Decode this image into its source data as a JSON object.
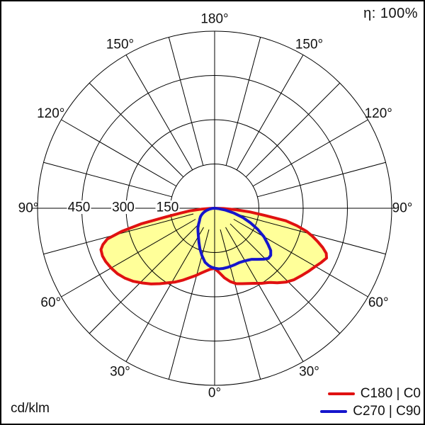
{
  "header": {
    "efficiency_label": "η: 100%"
  },
  "footer": {
    "unit_label": "cd/klm"
  },
  "legend": {
    "items": [
      {
        "label": "C180 | C0",
        "color": "#e01111"
      },
      {
        "label": "C270 | C90",
        "color": "#1515cc"
      }
    ]
  },
  "chart_data": {
    "type": "line",
    "polar": true,
    "units": "cd/klm",
    "efficiency": "100%",
    "radial_axis": {
      "max": 600,
      "rings": [
        150,
        300,
        450,
        600
      ]
    },
    "radial_tick_labels": [
      {
        "value": 450,
        "label": "450"
      },
      {
        "value": 300,
        "label": "300"
      },
      {
        "value": 150,
        "label": "150"
      }
    ],
    "angle_tick_labels": [
      {
        "dir": 180,
        "label": "180°"
      },
      {
        "dir": -150,
        "label": "150°"
      },
      {
        "dir": 150,
        "label": "150°"
      },
      {
        "dir": -120,
        "label": "120°"
      },
      {
        "dir": 120,
        "label": "120°"
      },
      {
        "dir": -90,
        "label": "90°"
      },
      {
        "dir": 90,
        "label": "90°"
      },
      {
        "dir": -60,
        "label": "60°"
      },
      {
        "dir": 60,
        "label": "60°"
      },
      {
        "dir": -30,
        "label": "30°"
      },
      {
        "dir": 30,
        "label": "30°"
      },
      {
        "dir": 0,
        "label": "0°"
      }
    ],
    "grid": {
      "spoke_step_deg": 15,
      "grid_color": "#000000"
    },
    "series": [
      {
        "name": "C180 | C0",
        "color": "#e01111",
        "fill": "#ffff99",
        "points": [
          [
            -90,
            3
          ],
          [
            -88,
            15
          ],
          [
            -86,
            45
          ],
          [
            -84,
            85
          ],
          [
            -82,
            115
          ],
          [
            -80,
            165
          ],
          [
            -78,
            255
          ],
          [
            -76,
            325
          ],
          [
            -74,
            378
          ],
          [
            -72,
            398
          ],
          [
            -70,
            410
          ],
          [
            -67,
            413
          ],
          [
            -64,
            411
          ],
          [
            -60,
            405
          ],
          [
            -56,
            397
          ],
          [
            -52,
            385
          ],
          [
            -48,
            370
          ],
          [
            -44,
            352
          ],
          [
            -40,
            335
          ],
          [
            -36,
            316
          ],
          [
            -32,
            298
          ],
          [
            -28,
            283
          ],
          [
            -24,
            267
          ],
          [
            -20,
            251
          ],
          [
            -16,
            238
          ],
          [
            -12,
            225
          ],
          [
            -8,
            215
          ],
          [
            -4,
            207
          ],
          [
            0,
            204
          ],
          [
            4,
            218
          ],
          [
            8,
            238
          ],
          [
            12,
            254
          ],
          [
            16,
            266
          ],
          [
            20,
            272
          ],
          [
            24,
            279
          ],
          [
            28,
            288
          ],
          [
            32,
            300
          ],
          [
            35,
            308
          ],
          [
            37,
            315
          ],
          [
            40,
            330
          ],
          [
            44,
            348
          ],
          [
            48,
            362
          ],
          [
            52,
            372
          ],
          [
            56,
            383
          ],
          [
            60,
            394
          ],
          [
            63,
            405
          ],
          [
            66,
            415
          ],
          [
            68,
            408
          ],
          [
            70,
            390
          ],
          [
            72,
            368
          ],
          [
            74,
            345
          ],
          [
            76,
            320
          ],
          [
            78,
            285
          ],
          [
            80,
            245
          ],
          [
            82,
            170
          ],
          [
            84,
            120
          ],
          [
            86,
            70
          ],
          [
            88,
            30
          ],
          [
            90,
            3
          ]
        ]
      },
      {
        "name": "C270 | C90",
        "color": "#1515cc",
        "fill": null,
        "points": [
          [
            -90,
            2
          ],
          [
            -85,
            9
          ],
          [
            -80,
            17
          ],
          [
            -75,
            28
          ],
          [
            -70,
            38
          ],
          [
            -65,
            47
          ],
          [
            -60,
            55
          ],
          [
            -55,
            61
          ],
          [
            -50,
            67
          ],
          [
            -45,
            77
          ],
          [
            -40,
            88
          ],
          [
            -35,
            98
          ],
          [
            -30,
            110
          ],
          [
            -25,
            126
          ],
          [
            -20,
            146
          ],
          [
            -15,
            166
          ],
          [
            -10,
            186
          ],
          [
            -6,
            195
          ],
          [
            -3,
            200
          ],
          [
            0,
            203
          ],
          [
            4,
            206
          ],
          [
            8,
            206
          ],
          [
            12,
            205
          ],
          [
            16,
            204
          ],
          [
            20,
            203
          ],
          [
            24,
            202
          ],
          [
            28,
            204
          ],
          [
            32,
            208
          ],
          [
            36,
            214
          ],
          [
            40,
            226
          ],
          [
            44,
            240
          ],
          [
            47,
            249
          ],
          [
            50,
            248
          ],
          [
            53,
            238
          ],
          [
            56,
            218
          ],
          [
            60,
            193
          ],
          [
            64,
            162
          ],
          [
            68,
            130
          ],
          [
            72,
            100
          ],
          [
            76,
            68
          ],
          [
            80,
            38
          ],
          [
            84,
            15
          ],
          [
            88,
            4
          ],
          [
            90,
            2
          ]
        ]
      }
    ]
  }
}
